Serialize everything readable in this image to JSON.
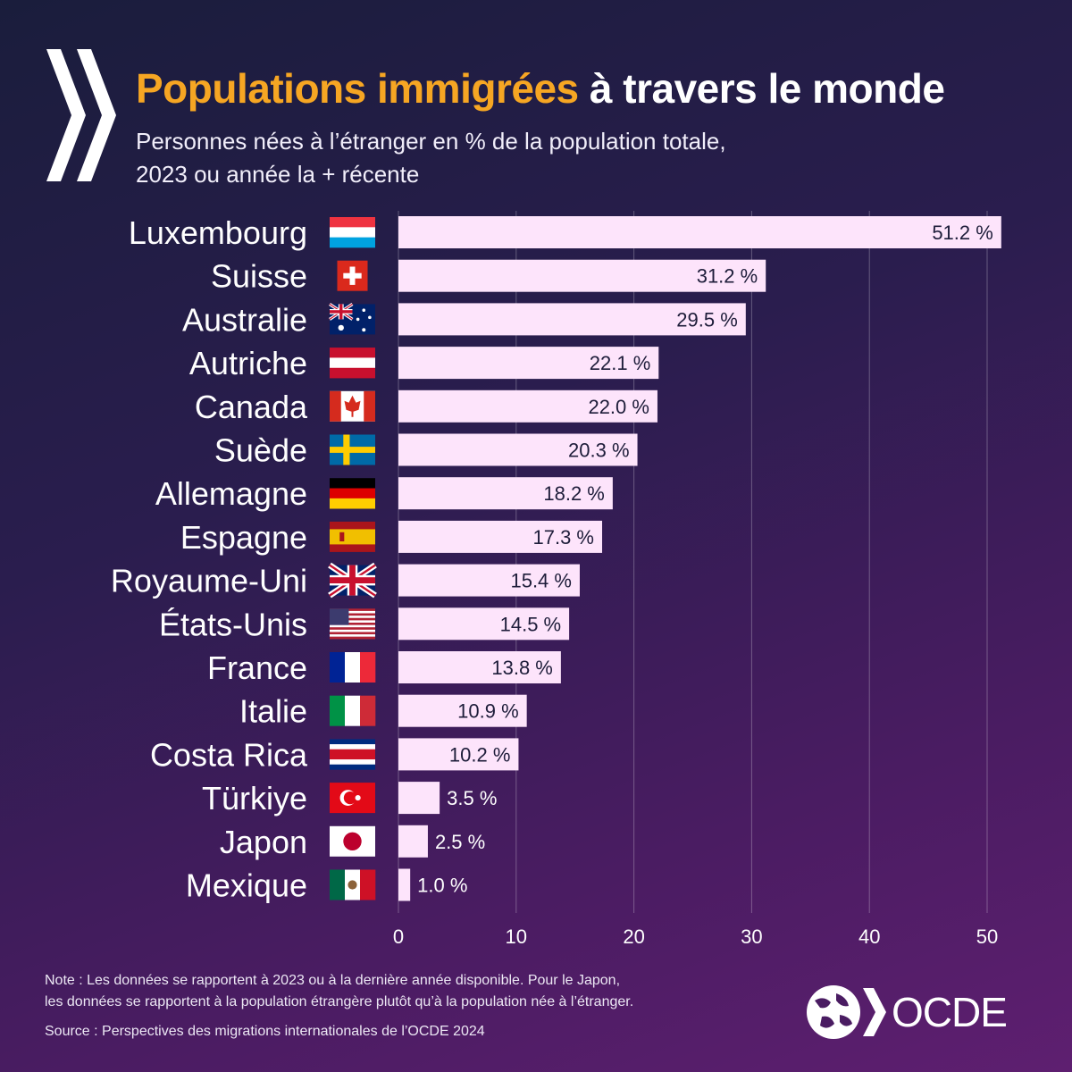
{
  "header": {
    "title_highlight": "Populations immigrées",
    "title_rest": "à travers le monde",
    "subtitle_line1": "Personnes nées à l’étranger en % de la population totale,",
    "subtitle_line2": "2023 ou année la + récente"
  },
  "chart_data": {
    "type": "bar",
    "orientation": "horizontal",
    "categories": [
      "Luxembourg",
      "Suisse",
      "Australie",
      "Autriche",
      "Canada",
      "Suède",
      "Allemagne",
      "Espagne",
      "Royaume-Uni",
      "États-Unis",
      "France",
      "Italie",
      "Costa Rica",
      "Türkiye",
      "Japon",
      "Mexique"
    ],
    "values": [
      51.2,
      31.2,
      29.5,
      22.1,
      22.0,
      20.3,
      18.2,
      17.3,
      15.4,
      14.5,
      13.8,
      10.9,
      10.2,
      3.5,
      2.5,
      1.0
    ],
    "value_labels": [
      "51.2 %",
      "31.2 %",
      "29.5 %",
      "22.1 %",
      "22.0 %",
      "20.3 %",
      "18.2 %",
      "17.3 %",
      "15.4 %",
      "14.5 %",
      "13.8 %",
      "10.9 %",
      "10.2 %",
      "3.5 %",
      "2.5 %",
      "1.0 %"
    ],
    "flags": [
      "luxembourg-flag-icon",
      "switzerland-flag-icon",
      "australia-flag-icon",
      "austria-flag-icon",
      "canada-flag-icon",
      "sweden-flag-icon",
      "germany-flag-icon",
      "spain-flag-icon",
      "uk-flag-icon",
      "usa-flag-icon",
      "france-flag-icon",
      "italy-flag-icon",
      "costa-rica-flag-icon",
      "turkiye-flag-icon",
      "japan-flag-icon",
      "mexico-flag-icon"
    ],
    "xticks": [
      0,
      10,
      20,
      30,
      40,
      50
    ],
    "tick_labels": [
      "0",
      "10",
      "20",
      "30",
      "40",
      "50"
    ],
    "xlim": [
      0,
      51.2
    ],
    "grid": true,
    "bar_color": "#fde4fb"
  },
  "footer": {
    "note_line1": "Note : Les données se rapportent à 2023 ou à la dernière année disponible. Pour le Japon,",
    "note_line2": "les données se rapportent à la population étrangère plutôt qu’à la population née à l’étranger.",
    "source": "Source : Perspectives des migrations internationales de l’OCDE 2024",
    "logo_text": "OCDE"
  }
}
